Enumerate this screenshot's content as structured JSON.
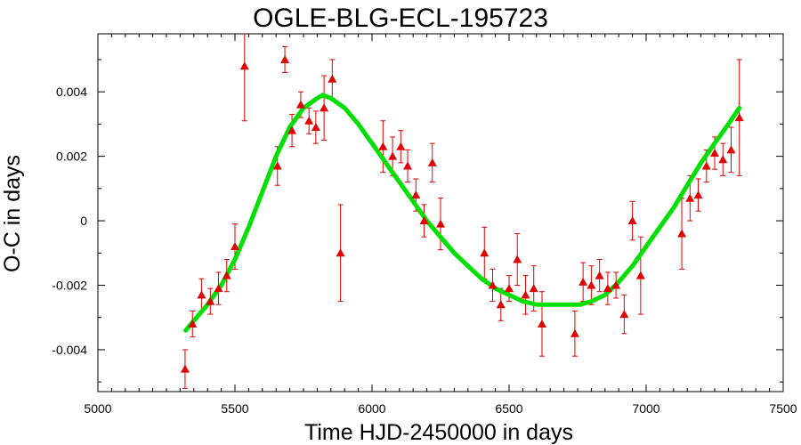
{
  "chart_data": {
    "type": "scatter",
    "title": "OGLE-BLG-ECL-195723",
    "xlabel": "Time HJD-2450000 in days",
    "ylabel": "O-C in days",
    "xlim": [
      5000,
      7500
    ],
    "ylim": [
      -0.0053,
      0.0058
    ],
    "xticks": [
      5000,
      5500,
      6000,
      6500,
      7000,
      7500
    ],
    "xtick_labels": [
      "5000",
      "5500",
      "6000",
      "6500",
      "7000",
      "7500"
    ],
    "yticks": [
      -0.004,
      -0.002,
      0,
      0.002,
      0.004
    ],
    "ytick_labels": [
      "-0.004",
      "-0.002",
      "0",
      "0.002",
      "0.004"
    ],
    "grid": false,
    "colors": {
      "points": "#e00000",
      "fit": "#00e000",
      "axis": "#000000"
    },
    "series": [
      {
        "marker": "triangle",
        "points": [
          {
            "x": 5318,
            "y": -0.0046,
            "err": 0.0006
          },
          {
            "x": 5345,
            "y": -0.0032,
            "err": 0.0004
          },
          {
            "x": 5378,
            "y": -0.0023,
            "err": 0.0005
          },
          {
            "x": 5410,
            "y": -0.0025,
            "err": 0.0004
          },
          {
            "x": 5440,
            "y": -0.0021,
            "err": 0.0005
          },
          {
            "x": 5470,
            "y": -0.0017,
            "err": 0.0005
          },
          {
            "x": 5500,
            "y": -0.0008,
            "err": 0.0007
          },
          {
            "x": 5535,
            "y": 0.0048,
            "err": 0.0017
          },
          {
            "x": 5655,
            "y": 0.0017,
            "err": 0.0006
          },
          {
            "x": 5682,
            "y": 0.005,
            "err": 0.0004
          },
          {
            "x": 5708,
            "y": 0.0028,
            "err": 0.0005
          },
          {
            "x": 5740,
            "y": 0.0036,
            "err": 0.0004
          },
          {
            "x": 5770,
            "y": 0.0031,
            "err": 0.0004
          },
          {
            "x": 5795,
            "y": 0.0029,
            "err": 0.0005
          },
          {
            "x": 5825,
            "y": 0.0035,
            "err": 0.001
          },
          {
            "x": 5855,
            "y": 0.0044,
            "err": 0.0006
          },
          {
            "x": 5885,
            "y": -0.001,
            "err": 0.0015
          },
          {
            "x": 6040,
            "y": 0.0023,
            "err": 0.0008
          },
          {
            "x": 6075,
            "y": 0.002,
            "err": 0.0006
          },
          {
            "x": 6105,
            "y": 0.0023,
            "err": 0.0005
          },
          {
            "x": 6130,
            "y": 0.0017,
            "err": 0.0005
          },
          {
            "x": 6160,
            "y": 0.0008,
            "err": 0.0005
          },
          {
            "x": 6190,
            "y": 0.0,
            "err": 0.0005
          },
          {
            "x": 6220,
            "y": 0.0018,
            "err": 0.0006
          },
          {
            "x": 6250,
            "y": -0.0001,
            "err": 0.0008
          },
          {
            "x": 6410,
            "y": -0.001,
            "err": 0.0008
          },
          {
            "x": 6440,
            "y": -0.002,
            "err": 0.0005
          },
          {
            "x": 6470,
            "y": -0.0026,
            "err": 0.0005
          },
          {
            "x": 6500,
            "y": -0.0021,
            "err": 0.0004
          },
          {
            "x": 6530,
            "y": -0.0012,
            "err": 0.0008
          },
          {
            "x": 6560,
            "y": -0.0023,
            "err": 0.0006
          },
          {
            "x": 6590,
            "y": -0.0021,
            "err": 0.0007
          },
          {
            "x": 6620,
            "y": -0.0032,
            "err": 0.001
          },
          {
            "x": 6740,
            "y": -0.0035,
            "err": 0.0007
          },
          {
            "x": 6770,
            "y": -0.0019,
            "err": 0.0006
          },
          {
            "x": 6800,
            "y": -0.002,
            "err": 0.0006
          },
          {
            "x": 6830,
            "y": -0.0017,
            "err": 0.0005
          },
          {
            "x": 6860,
            "y": -0.0021,
            "err": 0.0005
          },
          {
            "x": 6890,
            "y": -0.002,
            "err": 0.0004
          },
          {
            "x": 6920,
            "y": -0.0029,
            "err": 0.0006
          },
          {
            "x": 6950,
            "y": 0.0,
            "err": 0.0006
          },
          {
            "x": 6980,
            "y": -0.0017,
            "err": 0.0012
          },
          {
            "x": 7130,
            "y": -0.0004,
            "err": 0.0011
          },
          {
            "x": 7160,
            "y": 0.0007,
            "err": 0.0007
          },
          {
            "x": 7190,
            "y": 0.0008,
            "err": 0.0005
          },
          {
            "x": 7220,
            "y": 0.0017,
            "err": 0.0005
          },
          {
            "x": 7250,
            "y": 0.0021,
            "err": 0.0005
          },
          {
            "x": 7280,
            "y": 0.0019,
            "err": 0.0005
          },
          {
            "x": 7310,
            "y": 0.0022,
            "err": 0.0007
          },
          {
            "x": 7340,
            "y": 0.0032,
            "err": 0.0018
          }
        ]
      }
    ],
    "fit_curve": {
      "x": [
        5320,
        5400,
        5450,
        5500,
        5550,
        5600,
        5650,
        5700,
        5750,
        5800,
        5820,
        5850,
        5900,
        5950,
        6000,
        6050,
        6100,
        6150,
        6200,
        6250,
        6300,
        6350,
        6400,
        6450,
        6500,
        6550,
        6600,
        6650,
        6700,
        6730,
        6760,
        6800,
        6850,
        6900,
        6950,
        7000,
        7050,
        7100,
        7150,
        7200,
        7250,
        7300,
        7340
      ],
      "y": [
        -0.0034,
        -0.0026,
        -0.002,
        -0.0012,
        -0.0002,
        0.0009,
        0.002,
        0.0029,
        0.0035,
        0.0038,
        0.0039,
        0.0038,
        0.0035,
        0.003,
        0.0024,
        0.0018,
        0.0012,
        0.0006,
        0.0,
        -0.0005,
        -0.001,
        -0.0014,
        -0.0018,
        -0.0021,
        -0.0023,
        -0.0025,
        -0.0026,
        -0.0026,
        -0.0026,
        -0.0026,
        -0.0026,
        -0.0025,
        -0.0023,
        -0.0019,
        -0.0014,
        -0.0008,
        -0.0002,
        0.0004,
        0.0011,
        0.0018,
        0.0024,
        0.003,
        0.0035
      ]
    }
  }
}
